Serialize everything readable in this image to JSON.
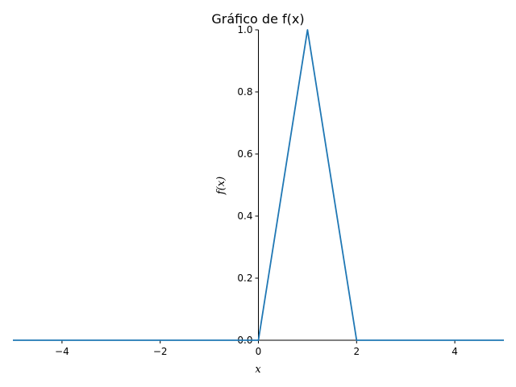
{
  "chart_data": {
    "type": "line",
    "title": "Gráfico de f(x)",
    "xlabel": "x",
    "ylabel": "f(x)",
    "xlim": [
      -5,
      5
    ],
    "ylim": [
      0,
      1
    ],
    "grid": false,
    "x_ticks": [
      -4,
      -2,
      0,
      2,
      4
    ],
    "x_tick_labels": [
      "−4",
      "−2",
      "0",
      "2",
      "4"
    ],
    "y_ticks": [
      0.0,
      0.2,
      0.4,
      0.6,
      0.8,
      1.0
    ],
    "y_tick_labels": [
      "0.0",
      "0.2",
      "0.4",
      "0.6",
      "0.8",
      "1.0"
    ],
    "series": [
      {
        "color": "#1f77b4",
        "x": [
          -5,
          0,
          1,
          2,
          5
        ],
        "y": [
          0,
          0,
          1,
          0,
          0
        ]
      }
    ]
  }
}
